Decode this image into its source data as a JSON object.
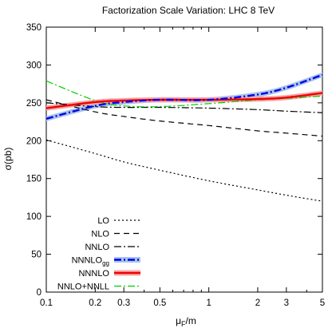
{
  "chart_data": {
    "type": "line",
    "title": "Factorization Scale Variation: LHC 8 TeV",
    "xlabel": "μF/m",
    "xlabel_main": "μ",
    "xlabel_sub": "F",
    "xlabel_tail": "/m",
    "ylabel": "σ(pb)",
    "xscale": "log",
    "xlim": [
      0.1,
      5
    ],
    "ylim": [
      0,
      350
    ],
    "xticks": [
      0.1,
      0.2,
      0.3,
      0.5,
      1,
      2,
      3,
      5
    ],
    "xtick_labels": [
      "0.1",
      "0.2",
      "0.3",
      "0.5",
      "1",
      "2",
      "3",
      "5"
    ],
    "yticks": [
      0,
      50,
      100,
      150,
      200,
      250,
      300,
      350
    ],
    "ytick_labels": [
      "0",
      "50",
      "100",
      "150",
      "200",
      "250",
      "300",
      "350"
    ],
    "grid": false,
    "legend_position": "bottom-left",
    "series": [
      {
        "name": "LO",
        "name_main": "LO",
        "name_sub": "",
        "color": "#000000",
        "style": "dotted",
        "x": [
          0.1,
          0.2,
          0.3,
          0.5,
          1,
          2,
          3,
          5
        ],
        "y": [
          201,
          183,
          172,
          161,
          147,
          135,
          128,
          120
        ]
      },
      {
        "name": "NLO",
        "name_main": "NLO",
        "name_sub": "",
        "color": "#000000",
        "style": "dashed",
        "x": [
          0.1,
          0.2,
          0.3,
          0.5,
          1,
          2,
          3,
          5
        ],
        "y": [
          254,
          238,
          232,
          226,
          220,
          213,
          210,
          206
        ]
      },
      {
        "name": "NNLO",
        "name_main": "NNLO",
        "name_sub": "",
        "color": "#000000",
        "style": "dashdot",
        "x": [
          0.1,
          0.2,
          0.3,
          0.5,
          1,
          2,
          3,
          5
        ],
        "y": [
          250,
          245,
          244,
          244,
          243,
          241,
          239,
          237
        ]
      },
      {
        "name": "NNNLOgg",
        "name_main": "NNNLO",
        "name_sub": "gg",
        "color": "#0000ee",
        "band_color": "#a8c4e8",
        "style": "dashdot-thick",
        "band": true,
        "x": [
          0.1,
          0.2,
          0.3,
          0.5,
          1,
          2,
          3,
          5
        ],
        "y": [
          229,
          246,
          251,
          254,
          254,
          261,
          270,
          287
        ]
      },
      {
        "name": "NNNLO",
        "name_main": "NNNLO",
        "name_sub": "",
        "color": "#ee0000",
        "band_color": "#f4a8a8",
        "style": "solid-thick",
        "band": true,
        "x": [
          0.1,
          0.2,
          0.3,
          0.5,
          1,
          2,
          3,
          5
        ],
        "y": [
          243,
          251,
          253,
          254,
          254,
          255,
          257,
          263
        ]
      },
      {
        "name": "NNLO+NNLL",
        "name_main": "NNLO+NNLL",
        "name_sub": "",
        "color": "#00cc00",
        "style": "dashdot-green",
        "x": [
          0.1,
          0.2,
          0.3,
          0.5,
          1,
          2,
          3,
          5
        ],
        "y": [
          279,
          253,
          246,
          245,
          249,
          254,
          256,
          259
        ]
      }
    ]
  }
}
